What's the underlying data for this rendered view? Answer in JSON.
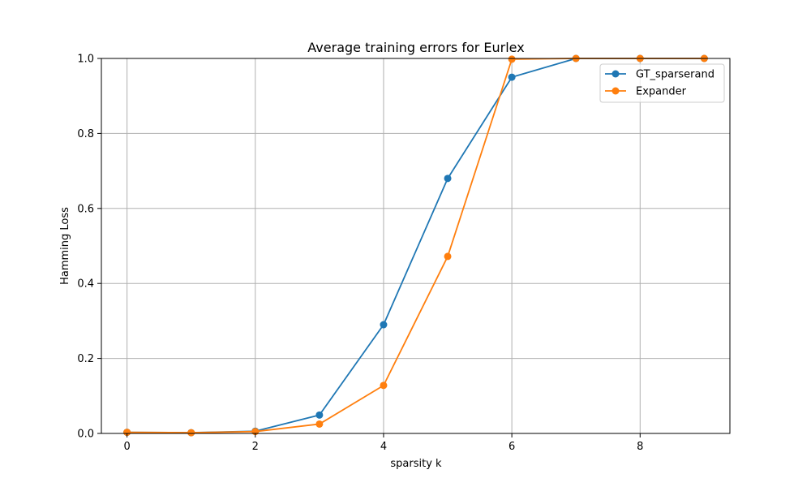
{
  "chart_data": {
    "type": "line",
    "title": "Average training errors for Eurlex",
    "xlabel": "sparsity k",
    "ylabel": "Hamming Loss",
    "xlim": [
      -0.4,
      9.4
    ],
    "ylim": [
      0,
      1.0
    ],
    "x_ticks": [
      0,
      2,
      4,
      6,
      8
    ],
    "y_ticks": [
      0.0,
      0.2,
      0.4,
      0.6,
      0.8,
      1.0
    ],
    "x_tick_labels": [
      "0",
      "2",
      "4",
      "6",
      "8"
    ],
    "y_tick_labels": [
      "0.0",
      "0.2",
      "0.4",
      "0.6",
      "0.8",
      "1.0"
    ],
    "grid": true,
    "legend_position": "top-right",
    "x": [
      0,
      1,
      2,
      3,
      4,
      5,
      6,
      7,
      8,
      9
    ],
    "series": [
      {
        "name": "GT_sparserand",
        "color": "#1f77b4",
        "values": [
          0.003,
          0.002,
          0.006,
          0.049,
          0.29,
          0.68,
          0.95,
          1.0,
          1.0,
          1.0
        ]
      },
      {
        "name": "Expander",
        "color": "#ff7f0e",
        "values": [
          0.003,
          0.002,
          0.005,
          0.025,
          0.128,
          0.472,
          0.998,
          1.0,
          1.0,
          1.0
        ]
      }
    ]
  }
}
